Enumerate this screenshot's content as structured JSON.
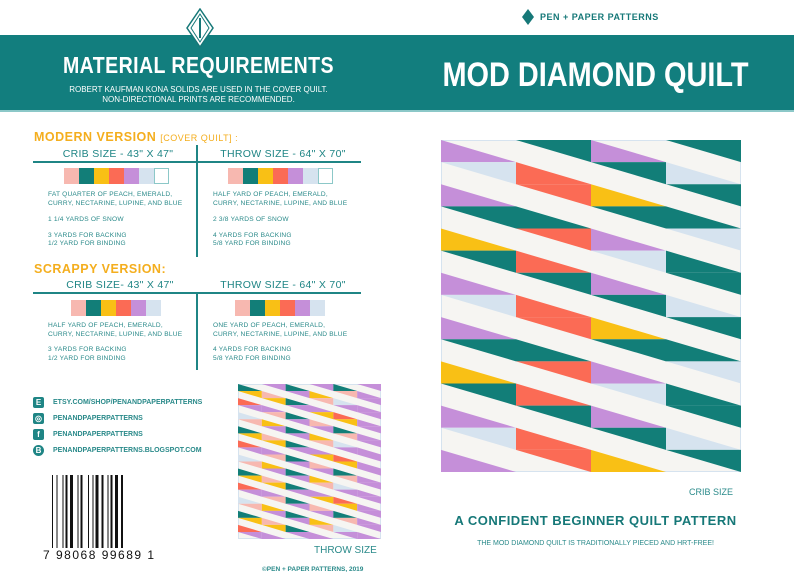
{
  "brand": {
    "name": "PEN + PAPER PATTERNS",
    "logo_icon": "diamond-pen-logo-icon"
  },
  "left": {
    "title": "MATERIAL REQUIREMENTS",
    "subtitle_1": "ROBERT KAUFMAN KONA SOLIDS ARE USED IN THE COVER QUILT.",
    "subtitle_2": "NON-DIRECTIONAL PRINTS ARE RECOMMENDED.",
    "modern": {
      "heading": "MODERN VERSION",
      "note": "[COVER QUILT] :",
      "crib": {
        "size": "CRIB SIZE - 43\" X 47\"",
        "line1": "FAT QUARTER OF PEACH, EMERALD,",
        "line2": "CURRY, NECTARINE, LUPINE, AND BLUE",
        "snow": "1 1/4 YARDS OF SNOW",
        "backing": "3 YARDS FOR BACKING",
        "binding": "1/2 YARD FOR BINDING"
      },
      "throw": {
        "size": "THROW SIZE - 64\" X 70\"",
        "line1": "HALF YARD OF PEACH, EMERALD,",
        "line2": "CURRY, NECTARINE, LUPINE, AND BLUE",
        "snow": "2 3/8 YARDS OF SNOW",
        "backing": "4 YARDS FOR BACKING",
        "binding": "5/8 YARD FOR BINDING"
      }
    },
    "scrappy": {
      "heading": "SCRAPPY VERSION:",
      "crib": {
        "size": "CRIB SIZE- 43\" X 47\"",
        "line1": "HALF YARD OF PEACH, EMERALD,",
        "line2": "CURRY, NECTARINE, LUPINE, AND BLUE",
        "backing": "3 YARDS FOR BACKING",
        "binding": "1/2 YARD FOR BINDING"
      },
      "throw": {
        "size": "THROW SIZE - 64\" X 70\"",
        "line1": "ONE YARD OF PEACH, EMERALD,",
        "line2": "CURRY, NECTARINE, LUPINE, AND BLUE",
        "backing": "4 YARDS FOR BACKING",
        "binding": "5/8 YARD FOR BINDING"
      }
    },
    "social": [
      {
        "icon": "etsy-icon",
        "glyph": "E",
        "text": "ETSY.COM/SHOP/PENANDPAPERPATTERNS"
      },
      {
        "icon": "instagram-icon",
        "glyph": "◎",
        "text": "PENANDPAPERPATTERNS"
      },
      {
        "icon": "facebook-icon",
        "glyph": "f",
        "text": "PENANDPAPERPATTERNS"
      },
      {
        "icon": "blogger-icon",
        "glyph": "B",
        "text": "PENANDPAPERPATTERNS.BLOGSPOT.COM"
      }
    ],
    "barcode": "7 98068 99689 1",
    "throw_caption": "THROW SIZE",
    "copyright": "©PEN + PAPER PATTERNS, 2019"
  },
  "right": {
    "title": "MOD DIAMOND QUILT",
    "crib_caption": "CRIB SIZE",
    "tagline": "A CONFIDENT BEGINNER QUILT PATTERN",
    "description": "THE MOD DIAMOND QUILT IS TRADITIONALLY PIECED AND HRT-FREE!"
  },
  "colors": {
    "teal": "#127e7e",
    "orange": "#f4ae1e",
    "peach": "#f7b8b0",
    "emerald": "#127e78",
    "curry": "#f9c015",
    "nectarine": "#fb6b55",
    "lupine": "#c58fd9",
    "blue": "#d6e3ef",
    "snow": "#f6f5f2"
  }
}
